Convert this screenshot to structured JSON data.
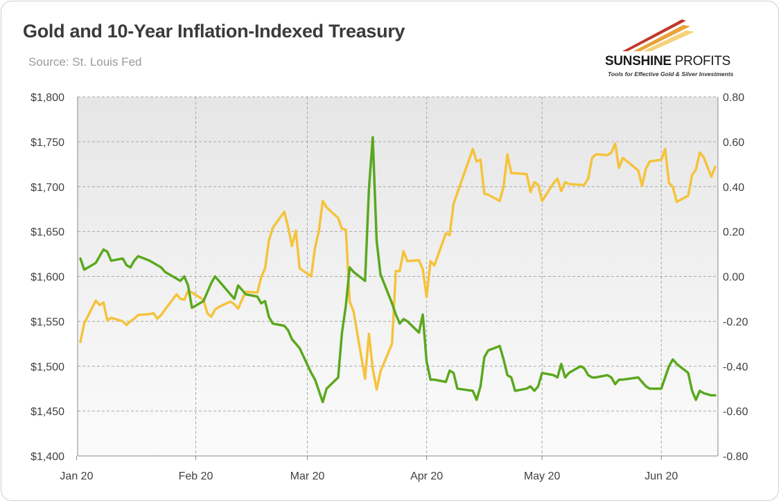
{
  "title": "Gold and 10-Year Inflation-Indexed Treasury",
  "source": "Source: St. Louis Fed",
  "logo": {
    "name_bold": "SUNSHINE",
    "name_light": "PROFITS",
    "tagline": "Tools for Effective Gold & Silver Investments",
    "colors": [
      "#c0392b",
      "#e8a33a",
      "#f5d27a"
    ]
  },
  "colors": {
    "gold": "#f5c33b",
    "tips": "#5aa81f",
    "grid": "#a8a8a8",
    "axis": "#888888"
  },
  "chart_data": {
    "type": "line",
    "title": "Gold and 10-Year Inflation-Indexed Treasury",
    "xlabel": "",
    "ylabel_left": "",
    "ylabel_right": "",
    "x_range": [
      "2020-01-02",
      "2020-06-15"
    ],
    "x_ticks": [
      {
        "date": "2020-01-01",
        "label": "Jan 20"
      },
      {
        "date": "2020-02-01",
        "label": "Feb 20"
      },
      {
        "date": "2020-03-01",
        "label": "Mar 20"
      },
      {
        "date": "2020-04-01",
        "label": "Apr 20"
      },
      {
        "date": "2020-05-01",
        "label": "May 20"
      },
      {
        "date": "2020-06-01",
        "label": "Jun 20"
      }
    ],
    "y_left": {
      "min": 1400,
      "max": 1800,
      "step": 50,
      "tick_labels": [
        "$1,400",
        "$1,450",
        "$1,500",
        "$1,550",
        "$1,600",
        "$1,650",
        "$1,700",
        "$1,750",
        "$1,800"
      ]
    },
    "y_right": {
      "min": -0.8,
      "max": 0.8,
      "step": 0.2,
      "tick_labels": [
        "-0.80",
        "-0.60",
        "-0.40",
        "-0.20",
        "0.00",
        "0.20",
        "0.40",
        "0.60",
        "0.80"
      ]
    },
    "grid": true,
    "legend": "none",
    "series": [
      {
        "axis": "left",
        "color": "#f5c33b",
        "points": [
          [
            "2020-01-02",
            1527
          ],
          [
            "2020-01-03",
            1548
          ],
          [
            "2020-01-06",
            1573
          ],
          [
            "2020-01-07",
            1568
          ],
          [
            "2020-01-08",
            1571
          ],
          [
            "2020-01-09",
            1551
          ],
          [
            "2020-01-10",
            1554
          ],
          [
            "2020-01-13",
            1550
          ],
          [
            "2020-01-14",
            1546
          ],
          [
            "2020-01-15",
            1550
          ],
          [
            "2020-01-16",
            1553
          ],
          [
            "2020-01-17",
            1557
          ],
          [
            "2020-01-20",
            1558
          ],
          [
            "2020-01-21",
            1559
          ],
          [
            "2020-01-22",
            1553
          ],
          [
            "2020-01-23",
            1557
          ],
          [
            "2020-01-24",
            1563
          ],
          [
            "2020-01-27",
            1580
          ],
          [
            "2020-01-28",
            1575
          ],
          [
            "2020-01-29",
            1574
          ],
          [
            "2020-01-30",
            1584
          ],
          [
            "2020-01-31",
            1582
          ],
          [
            "2020-02-03",
            1574
          ],
          [
            "2020-02-04",
            1559
          ],
          [
            "2020-02-05",
            1555
          ],
          [
            "2020-02-06",
            1563
          ],
          [
            "2020-02-07",
            1566
          ],
          [
            "2020-02-10",
            1572
          ],
          [
            "2020-02-11",
            1569
          ],
          [
            "2020-02-12",
            1564
          ],
          [
            "2020-02-13",
            1574
          ],
          [
            "2020-02-14",
            1583
          ],
          [
            "2020-02-17",
            1582
          ],
          [
            "2020-02-18",
            1599
          ],
          [
            "2020-02-19",
            1609
          ],
          [
            "2020-02-20",
            1640
          ],
          [
            "2020-02-21",
            1654
          ],
          [
            "2020-02-24",
            1672
          ],
          [
            "2020-02-25",
            1655
          ],
          [
            "2020-02-26",
            1634
          ],
          [
            "2020-02-27",
            1651
          ],
          [
            "2020-02-28",
            1609
          ],
          [
            "2020-03-02",
            1600
          ],
          [
            "2020-03-03",
            1632
          ],
          [
            "2020-03-04",
            1651
          ],
          [
            "2020-03-05",
            1684
          ],
          [
            "2020-03-06",
            1677
          ],
          [
            "2020-03-09",
            1665
          ],
          [
            "2020-03-10",
            1653
          ],
          [
            "2020-03-11",
            1652
          ],
          [
            "2020-03-12",
            1572
          ],
          [
            "2020-03-13",
            1561
          ],
          [
            "2020-03-16",
            1486
          ],
          [
            "2020-03-17",
            1536
          ],
          [
            "2020-03-18",
            1497
          ],
          [
            "2020-03-19",
            1474
          ],
          [
            "2020-03-20",
            1494
          ],
          [
            "2020-03-23",
            1525
          ],
          [
            "2020-03-24",
            1606
          ],
          [
            "2020-03-25",
            1606
          ],
          [
            "2020-03-26",
            1628
          ],
          [
            "2020-03-27",
            1617
          ],
          [
            "2020-03-30",
            1618
          ],
          [
            "2020-03-31",
            1608
          ],
          [
            "2020-04-01",
            1577
          ],
          [
            "2020-04-02",
            1617
          ],
          [
            "2020-04-03",
            1612
          ],
          [
            "2020-04-06",
            1648
          ],
          [
            "2020-04-07",
            1646
          ],
          [
            "2020-04-08",
            1681
          ],
          [
            "2020-04-09",
            1693
          ],
          [
            "2020-04-13",
            1742
          ],
          [
            "2020-04-14",
            1728
          ],
          [
            "2020-04-15",
            1730
          ],
          [
            "2020-04-16",
            1692
          ],
          [
            "2020-04-17",
            1691
          ],
          [
            "2020-04-20",
            1684
          ],
          [
            "2020-04-21",
            1700
          ],
          [
            "2020-04-22",
            1736
          ],
          [
            "2020-04-23",
            1715
          ],
          [
            "2020-04-24",
            1715
          ],
          [
            "2020-04-27",
            1714
          ],
          [
            "2020-04-28",
            1694
          ],
          [
            "2020-04-29",
            1705
          ],
          [
            "2020-04-30",
            1702
          ],
          [
            "2020-05-01",
            1684
          ],
          [
            "2020-05-04",
            1704
          ],
          [
            "2020-05-05",
            1709
          ],
          [
            "2020-05-06",
            1695
          ],
          [
            "2020-05-07",
            1705
          ],
          [
            "2020-05-08",
            1703
          ],
          [
            "2020-05-11",
            1702
          ],
          [
            "2020-05-12",
            1702
          ],
          [
            "2020-05-13",
            1709
          ],
          [
            "2020-05-14",
            1732
          ],
          [
            "2020-05-15",
            1736
          ],
          [
            "2020-05-18",
            1735
          ],
          [
            "2020-05-19",
            1738
          ],
          [
            "2020-05-20",
            1748
          ],
          [
            "2020-05-21",
            1721
          ],
          [
            "2020-05-22",
            1732
          ],
          [
            "2020-05-26",
            1718
          ],
          [
            "2020-05-27",
            1701
          ],
          [
            "2020-05-28",
            1720
          ],
          [
            "2020-05-29",
            1728
          ],
          [
            "2020-06-01",
            1730
          ],
          [
            "2020-06-02",
            1742
          ],
          [
            "2020-06-03",
            1704
          ],
          [
            "2020-06-04",
            1700
          ],
          [
            "2020-06-05",
            1683
          ],
          [
            "2020-06-08",
            1690
          ],
          [
            "2020-06-09",
            1713
          ],
          [
            "2020-06-10",
            1719
          ],
          [
            "2020-06-11",
            1738
          ],
          [
            "2020-06-12",
            1733
          ],
          [
            "2020-06-14",
            1711
          ],
          [
            "2020-06-15",
            1722
          ]
        ]
      },
      {
        "axis": "right",
        "color": "#5aa81f",
        "points": [
          [
            "2020-01-02",
            0.08
          ],
          [
            "2020-01-03",
            0.03
          ],
          [
            "2020-01-06",
            0.06
          ],
          [
            "2020-01-07",
            0.09
          ],
          [
            "2020-01-08",
            0.12
          ],
          [
            "2020-01-09",
            0.11
          ],
          [
            "2020-01-10",
            0.07
          ],
          [
            "2020-01-13",
            0.08
          ],
          [
            "2020-01-14",
            0.05
          ],
          [
            "2020-01-15",
            0.04
          ],
          [
            "2020-01-16",
            0.07
          ],
          [
            "2020-01-17",
            0.09
          ],
          [
            "2020-01-20",
            0.07
          ],
          [
            "2020-01-21",
            0.06
          ],
          [
            "2020-01-22",
            0.05
          ],
          [
            "2020-01-23",
            0.04
          ],
          [
            "2020-01-24",
            0.02
          ],
          [
            "2020-01-27",
            -0.01
          ],
          [
            "2020-01-28",
            -0.02
          ],
          [
            "2020-01-29",
            0.0
          ],
          [
            "2020-01-30",
            -0.04
          ],
          [
            "2020-01-31",
            -0.14
          ],
          [
            "2020-02-03",
            -0.11
          ],
          [
            "2020-02-04",
            -0.07
          ],
          [
            "2020-02-05",
            -0.03
          ],
          [
            "2020-02-06",
            0.0
          ],
          [
            "2020-02-07",
            -0.02
          ],
          [
            "2020-02-10",
            -0.08
          ],
          [
            "2020-02-11",
            -0.1
          ],
          [
            "2020-02-12",
            -0.04
          ],
          [
            "2020-02-13",
            -0.06
          ],
          [
            "2020-02-14",
            -0.08
          ],
          [
            "2020-02-17",
            -0.09
          ],
          [
            "2020-02-18",
            -0.12
          ],
          [
            "2020-02-19",
            -0.11
          ],
          [
            "2020-02-20",
            -0.18
          ],
          [
            "2020-02-21",
            -0.21
          ],
          [
            "2020-02-24",
            -0.22
          ],
          [
            "2020-02-25",
            -0.24
          ],
          [
            "2020-02-26",
            -0.28
          ],
          [
            "2020-02-27",
            -0.3
          ],
          [
            "2020-02-28",
            -0.32
          ],
          [
            "2020-03-02",
            -0.43
          ],
          [
            "2020-03-03",
            -0.46
          ],
          [
            "2020-03-04",
            -0.51
          ],
          [
            "2020-03-05",
            -0.56
          ],
          [
            "2020-03-06",
            -0.5
          ],
          [
            "2020-03-09",
            -0.45
          ],
          [
            "2020-03-10",
            -0.25
          ],
          [
            "2020-03-11",
            -0.13
          ],
          [
            "2020-03-12",
            0.04
          ],
          [
            "2020-03-13",
            0.02
          ],
          [
            "2020-03-16",
            -0.02
          ],
          [
            "2020-03-17",
            0.39
          ],
          [
            "2020-03-18",
            0.62
          ],
          [
            "2020-03-19",
            0.16
          ],
          [
            "2020-03-20",
            0.01
          ],
          [
            "2020-03-23",
            -0.12
          ],
          [
            "2020-03-24",
            -0.17
          ],
          [
            "2020-03-25",
            -0.21
          ],
          [
            "2020-03-26",
            -0.19
          ],
          [
            "2020-03-27",
            -0.2
          ],
          [
            "2020-03-30",
            -0.25
          ],
          [
            "2020-03-31",
            -0.17
          ],
          [
            "2020-04-01",
            -0.38
          ],
          [
            "2020-04-02",
            -0.46
          ],
          [
            "2020-04-03",
            -0.46
          ],
          [
            "2020-04-06",
            -0.47
          ],
          [
            "2020-04-07",
            -0.42
          ],
          [
            "2020-04-08",
            -0.43
          ],
          [
            "2020-04-09",
            -0.5
          ],
          [
            "2020-04-13",
            -0.51
          ],
          [
            "2020-04-14",
            -0.55
          ],
          [
            "2020-04-15",
            -0.49
          ],
          [
            "2020-04-16",
            -0.36
          ],
          [
            "2020-04-17",
            -0.33
          ],
          [
            "2020-04-20",
            -0.31
          ],
          [
            "2020-04-21",
            -0.37
          ],
          [
            "2020-04-22",
            -0.44
          ],
          [
            "2020-04-23",
            -0.45
          ],
          [
            "2020-04-24",
            -0.51
          ],
          [
            "2020-04-27",
            -0.5
          ],
          [
            "2020-04-28",
            -0.49
          ],
          [
            "2020-04-29",
            -0.51
          ],
          [
            "2020-04-30",
            -0.49
          ],
          [
            "2020-05-01",
            -0.43
          ],
          [
            "2020-05-04",
            -0.44
          ],
          [
            "2020-05-05",
            -0.45
          ],
          [
            "2020-05-06",
            -0.39
          ],
          [
            "2020-05-07",
            -0.45
          ],
          [
            "2020-05-08",
            -0.43
          ],
          [
            "2020-05-11",
            -0.4
          ],
          [
            "2020-05-12",
            -0.41
          ],
          [
            "2020-05-13",
            -0.44
          ],
          [
            "2020-05-14",
            -0.45
          ],
          [
            "2020-05-15",
            -0.45
          ],
          [
            "2020-05-18",
            -0.44
          ],
          [
            "2020-05-19",
            -0.45
          ],
          [
            "2020-05-20",
            -0.48
          ],
          [
            "2020-05-21",
            -0.46
          ],
          [
            "2020-05-22",
            -0.46
          ],
          [
            "2020-05-26",
            -0.45
          ],
          [
            "2020-05-27",
            -0.47
          ],
          [
            "2020-05-28",
            -0.49
          ],
          [
            "2020-05-29",
            -0.5
          ],
          [
            "2020-06-01",
            -0.5
          ],
          [
            "2020-06-02",
            -0.45
          ],
          [
            "2020-06-03",
            -0.4
          ],
          [
            "2020-06-04",
            -0.37
          ],
          [
            "2020-06-05",
            -0.39
          ],
          [
            "2020-06-08",
            -0.43
          ],
          [
            "2020-06-09",
            -0.51
          ],
          [
            "2020-06-10",
            -0.55
          ],
          [
            "2020-06-11",
            -0.51
          ],
          [
            "2020-06-12",
            -0.52
          ],
          [
            "2020-06-14",
            -0.53
          ],
          [
            "2020-06-15",
            -0.53
          ]
        ]
      }
    ]
  }
}
